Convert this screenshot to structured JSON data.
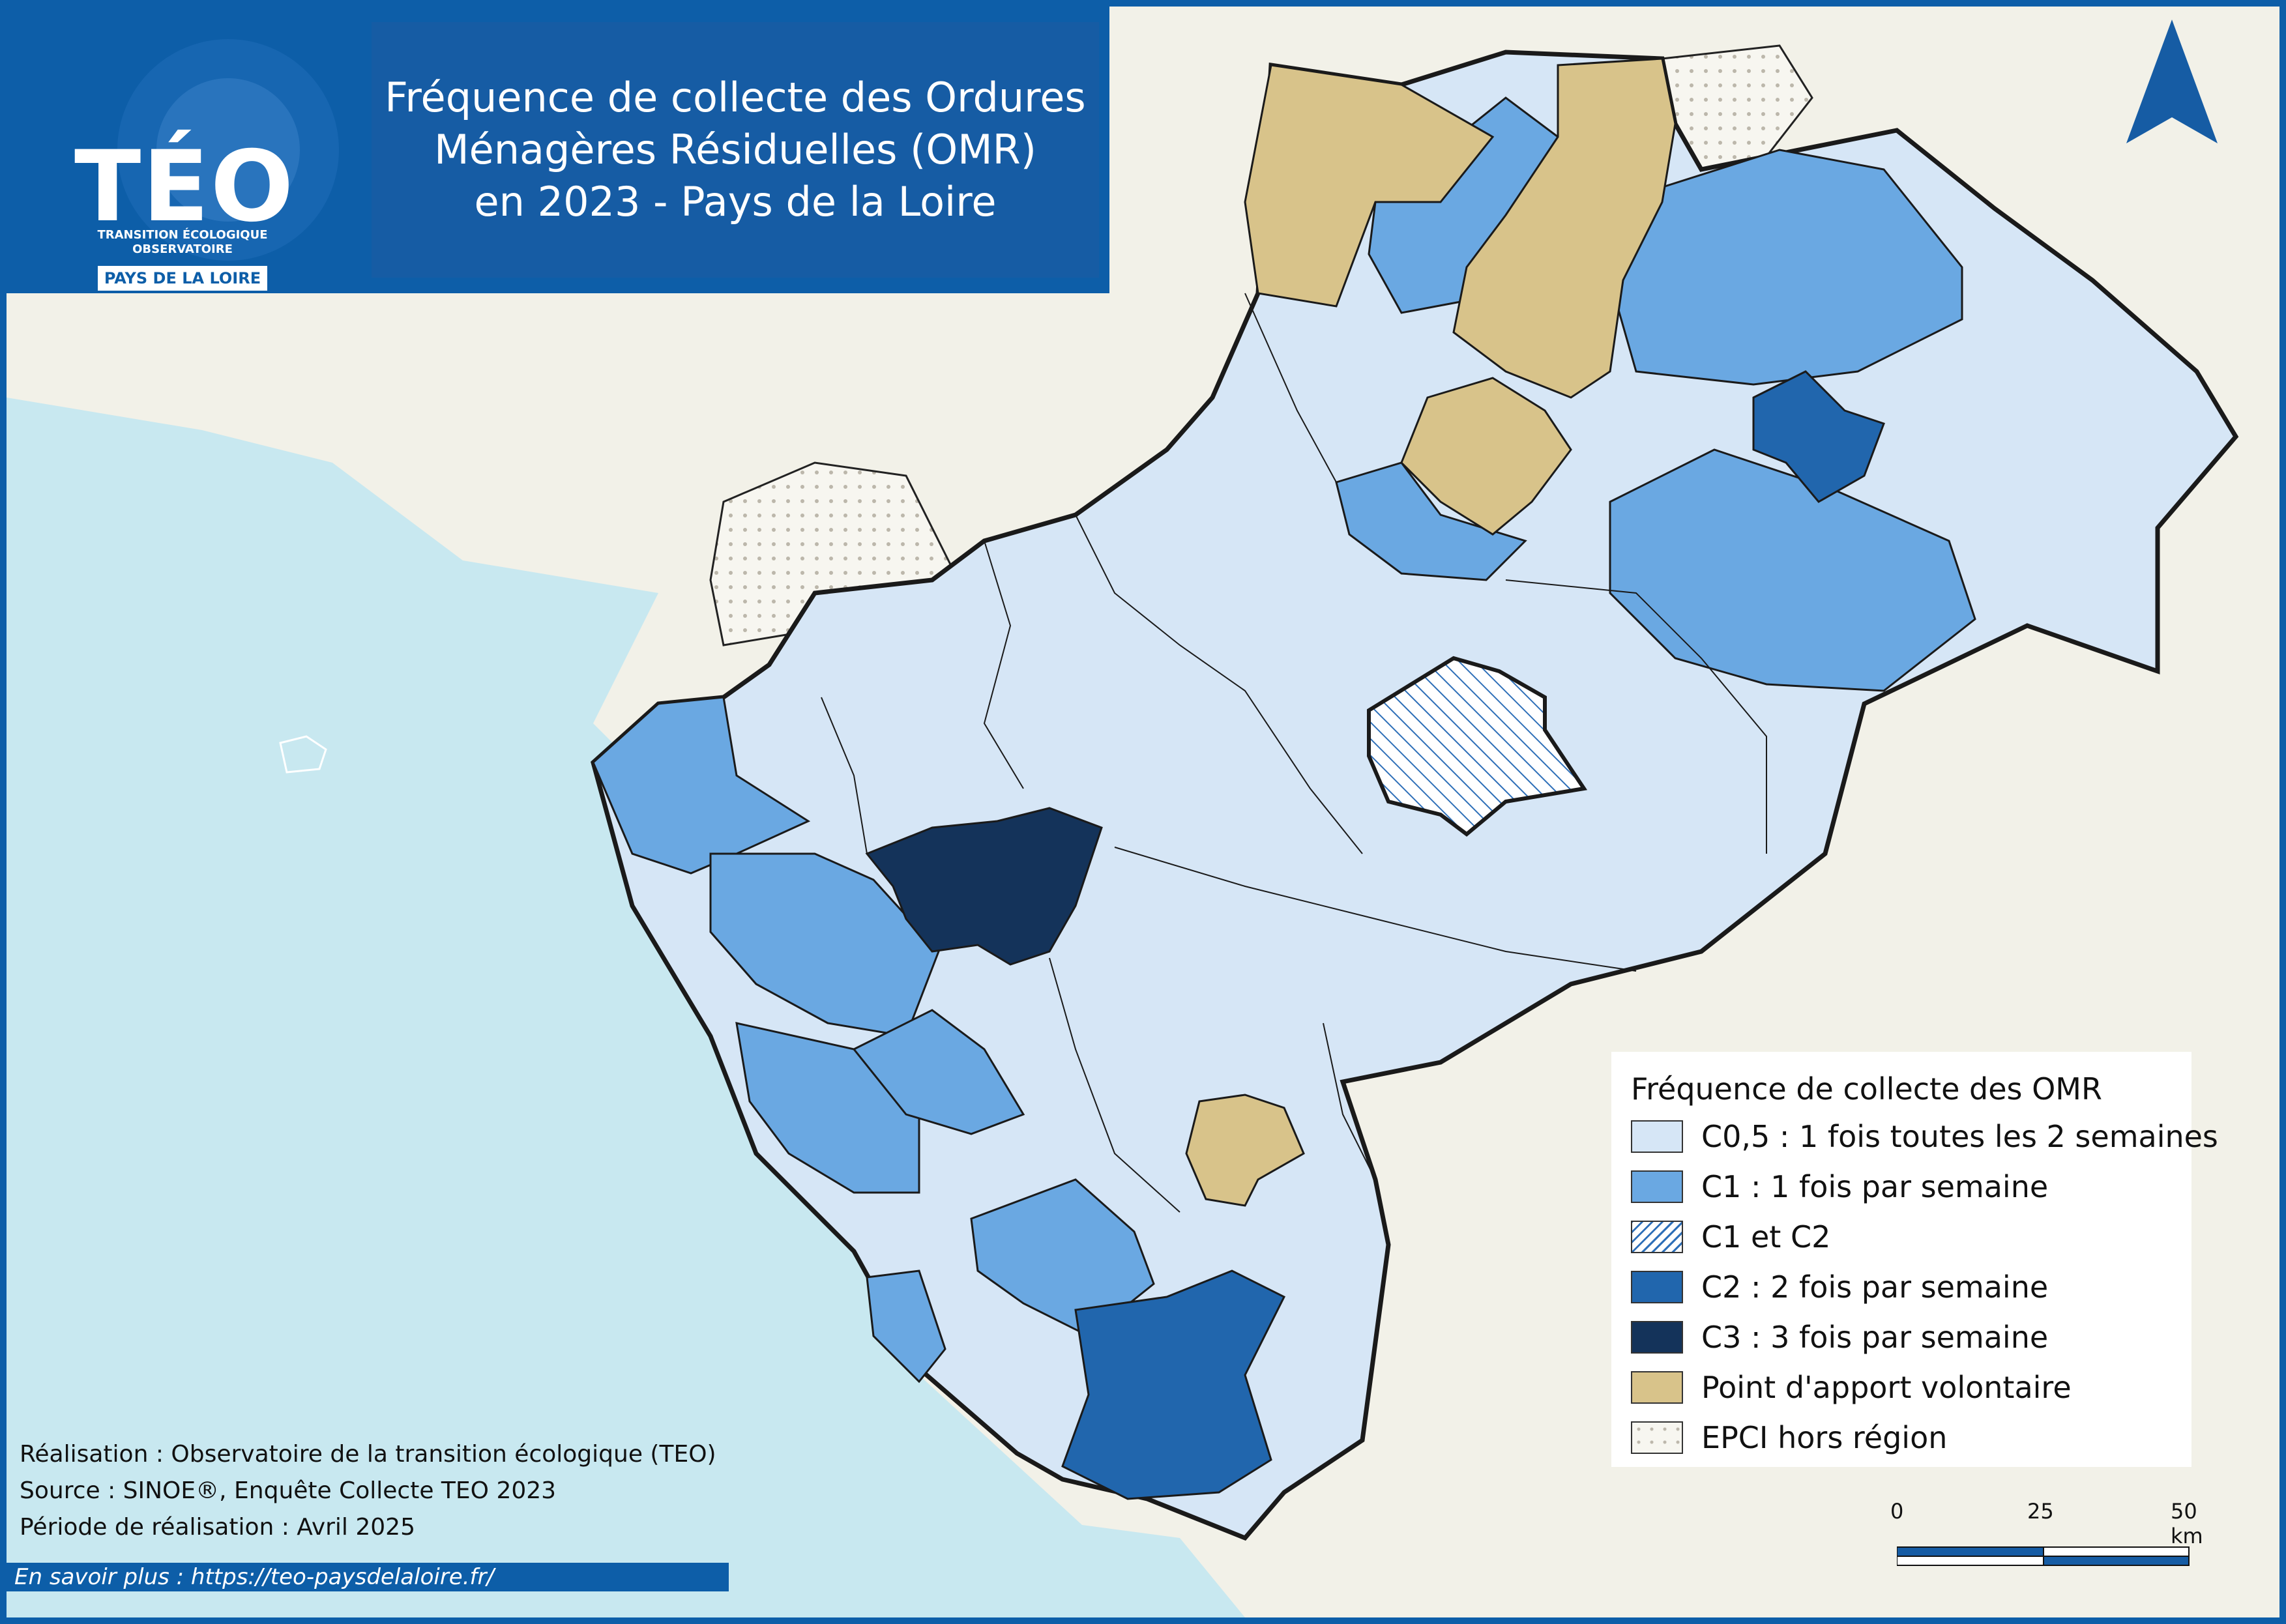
{
  "header": {
    "title": "Fréquence de collecte des Ordures\nMénagères Résiduelles (OMR)\nen 2023 - Pays de la Loire"
  },
  "logo": {
    "name": "TÉO",
    "tagline": "TRANSITION ÉCOLOGIQUE\nOBSERVATOIRE",
    "region": "PAYS DE LA LOIRE"
  },
  "legend": {
    "title": "Fréquence de collecte des OMR",
    "items": [
      {
        "label": "C0,5 : 1 fois toutes les 2 semaines",
        "color": "#d6e6f6"
      },
      {
        "label": "C1 : 1 fois par semaine",
        "color": "#6aa8e2"
      },
      {
        "label": "C1 et C2",
        "color": "hatched"
      },
      {
        "label": "C2 : 2 fois par semaine",
        "color": "#2166ad"
      },
      {
        "label": "C3 : 3 fois par semaine",
        "color": "#14335a"
      },
      {
        "label": "Point d'apport volontaire",
        "color": "#d8c38a"
      },
      {
        "label": "EPCI hors région",
        "color": "dotted"
      }
    ]
  },
  "credits": {
    "line1": "Réalisation : Observatoire de la transition écologique (TEO)",
    "line2": "Source : SINOE®, Enquête Collecte TEO 2023",
    "line3": "Période de réalisation : Avril 2025"
  },
  "more_info": "En savoir plus : https://teo-paysdelaloire.fr/",
  "scale": {
    "l0": "0",
    "l25": "25",
    "l50": "50 km"
  },
  "icons": {
    "north": "north-arrow-icon"
  },
  "colors": {
    "sea": "#c8e8f0",
    "land": "#f2f1e8",
    "border": "#1a1a1a",
    "frame": "#0d5ea8"
  }
}
